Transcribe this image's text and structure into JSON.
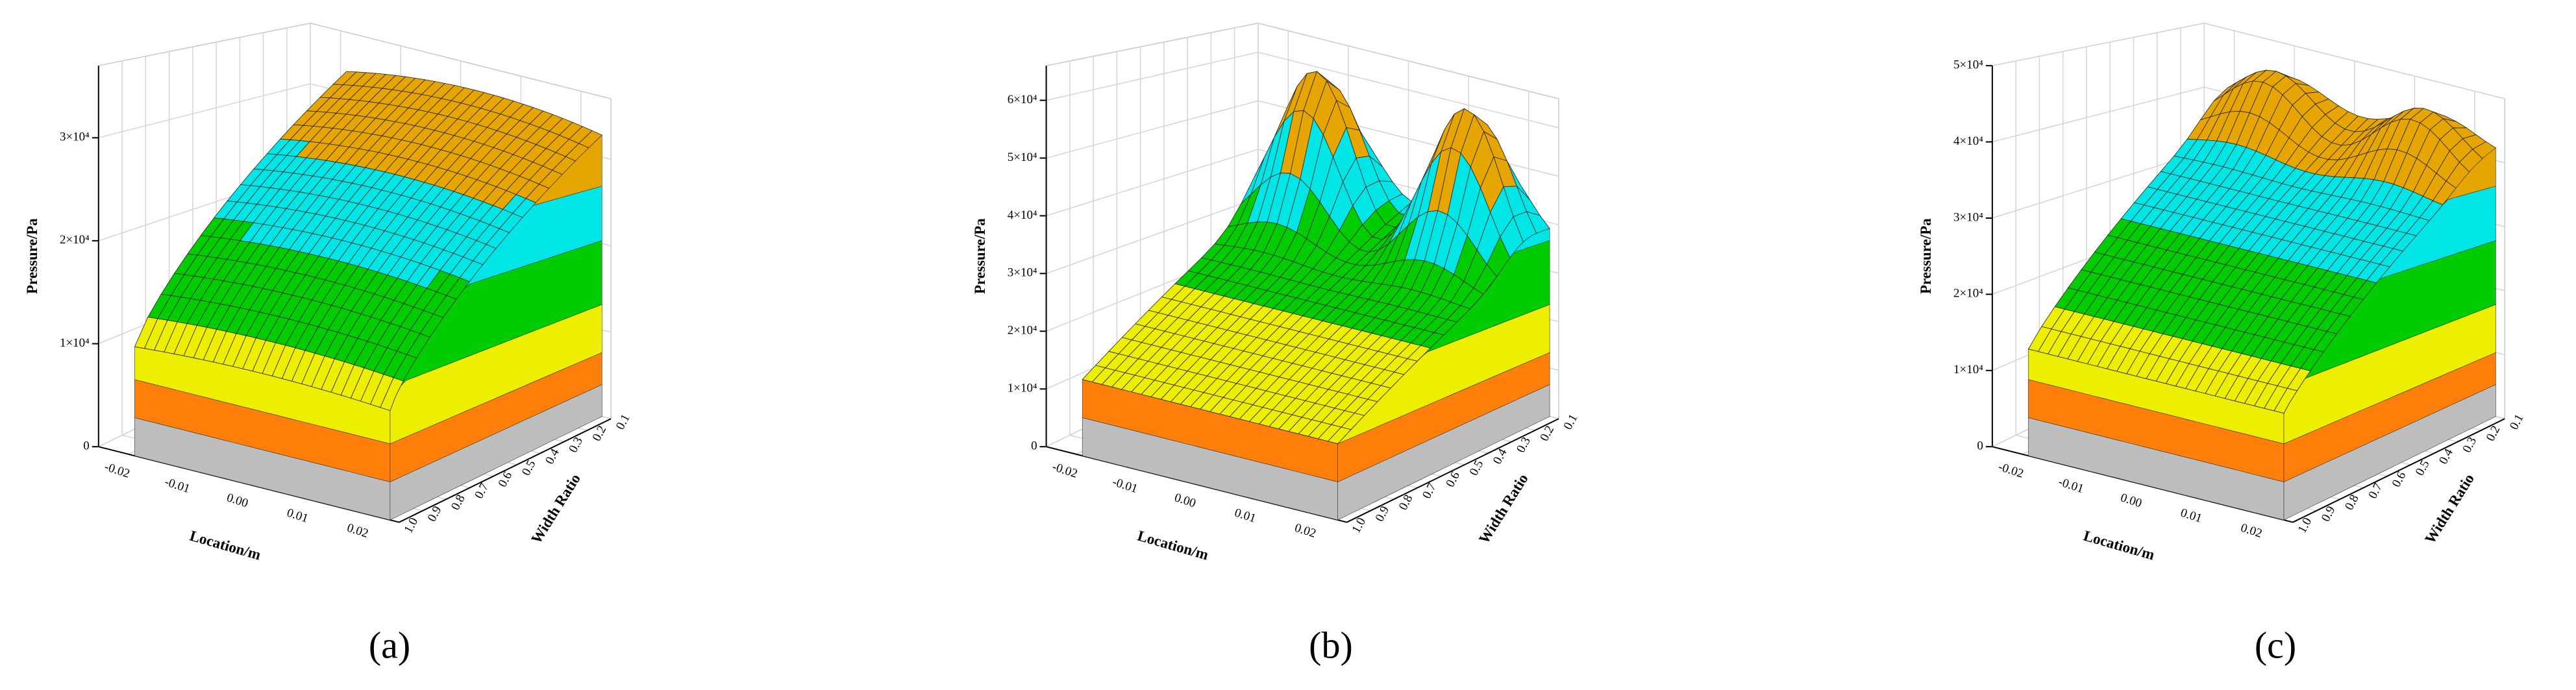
{
  "chart_data": [
    {
      "type": "surface",
      "label": "(a)",
      "zlabel": "Pressure/Pa",
      "xlabel": "Location/m",
      "ylabel": "Width Ratio",
      "xlim": [
        -0.025,
        0.025
      ],
      "xticks": [
        -0.02,
        -0.01,
        {
          "value": 0,
          "label": "0.00"
        },
        0.01,
        0.02
      ],
      "ylim": [
        1.0,
        0.1
      ],
      "yticks": [
        {
          "value": 1,
          "label": "1.0"
        },
        0.9,
        0.8,
        0.7,
        0.6,
        0.5,
        0.4,
        0.3,
        0.2,
        0.1
      ],
      "zlim": [
        0,
        37000
      ],
      "zticks": [
        0,
        {
          "value": 10000,
          "label": "1×10⁴"
        },
        {
          "value": 20000,
          "label": "2×10⁴"
        },
        {
          "value": 30000,
          "label": "3×10⁴"
        }
      ]
    },
    {
      "type": "surface",
      "label": "(b)",
      "zlabel": "Pressure/Pa",
      "xlabel": "Location/m",
      "ylabel": "Width Ratio",
      "xlim": [
        -0.025,
        0.025
      ],
      "xticks": [
        -0.02,
        -0.01,
        {
          "value": 0,
          "label": "0.00"
        },
        0.01,
        0.02
      ],
      "ylim": [
        1.0,
        0.1
      ],
      "yticks": [
        {
          "value": 1,
          "label": "1.0"
        },
        0.9,
        0.8,
        0.7,
        0.6,
        0.5,
        0.4,
        0.3,
        0.2,
        0.1
      ],
      "zlim": [
        0,
        66000
      ],
      "zticks": [
        0,
        {
          "value": 10000,
          "label": "1×10⁴"
        },
        {
          "value": 20000,
          "label": "2×10⁴"
        },
        {
          "value": 30000,
          "label": "3×10⁴"
        },
        {
          "value": 40000,
          "label": "4×10⁴"
        },
        {
          "value": 50000,
          "label": "5×10⁴"
        },
        {
          "value": 60000,
          "label": "6×10⁴"
        }
      ]
    },
    {
      "type": "surface",
      "label": "(c)",
      "zlabel": "Pressure/Pa",
      "xlabel": "Location/m",
      "ylabel": "Width Ratio",
      "xlim": [
        -0.025,
        0.025
      ],
      "xticks": [
        -0.02,
        -0.01,
        {
          "value": 0,
          "label": "0.00"
        },
        0.01,
        0.02
      ],
      "ylim": [
        1.0,
        0.1
      ],
      "yticks": [
        {
          "value": 1,
          "label": "1.0"
        },
        0.9,
        0.8,
        0.7,
        0.6,
        0.5,
        0.4,
        0.3,
        0.2,
        0.1
      ],
      "zlim": [
        0,
        50000
      ],
      "zticks": [
        0,
        {
          "value": 10000,
          "label": "1×10⁴"
        },
        {
          "value": 20000,
          "label": "2×10⁴"
        },
        {
          "value": 30000,
          "label": "3×10⁴"
        },
        {
          "value": 40000,
          "label": "4×10⁴"
        },
        {
          "value": 50000,
          "label": "5×10⁴"
        }
      ]
    }
  ]
}
